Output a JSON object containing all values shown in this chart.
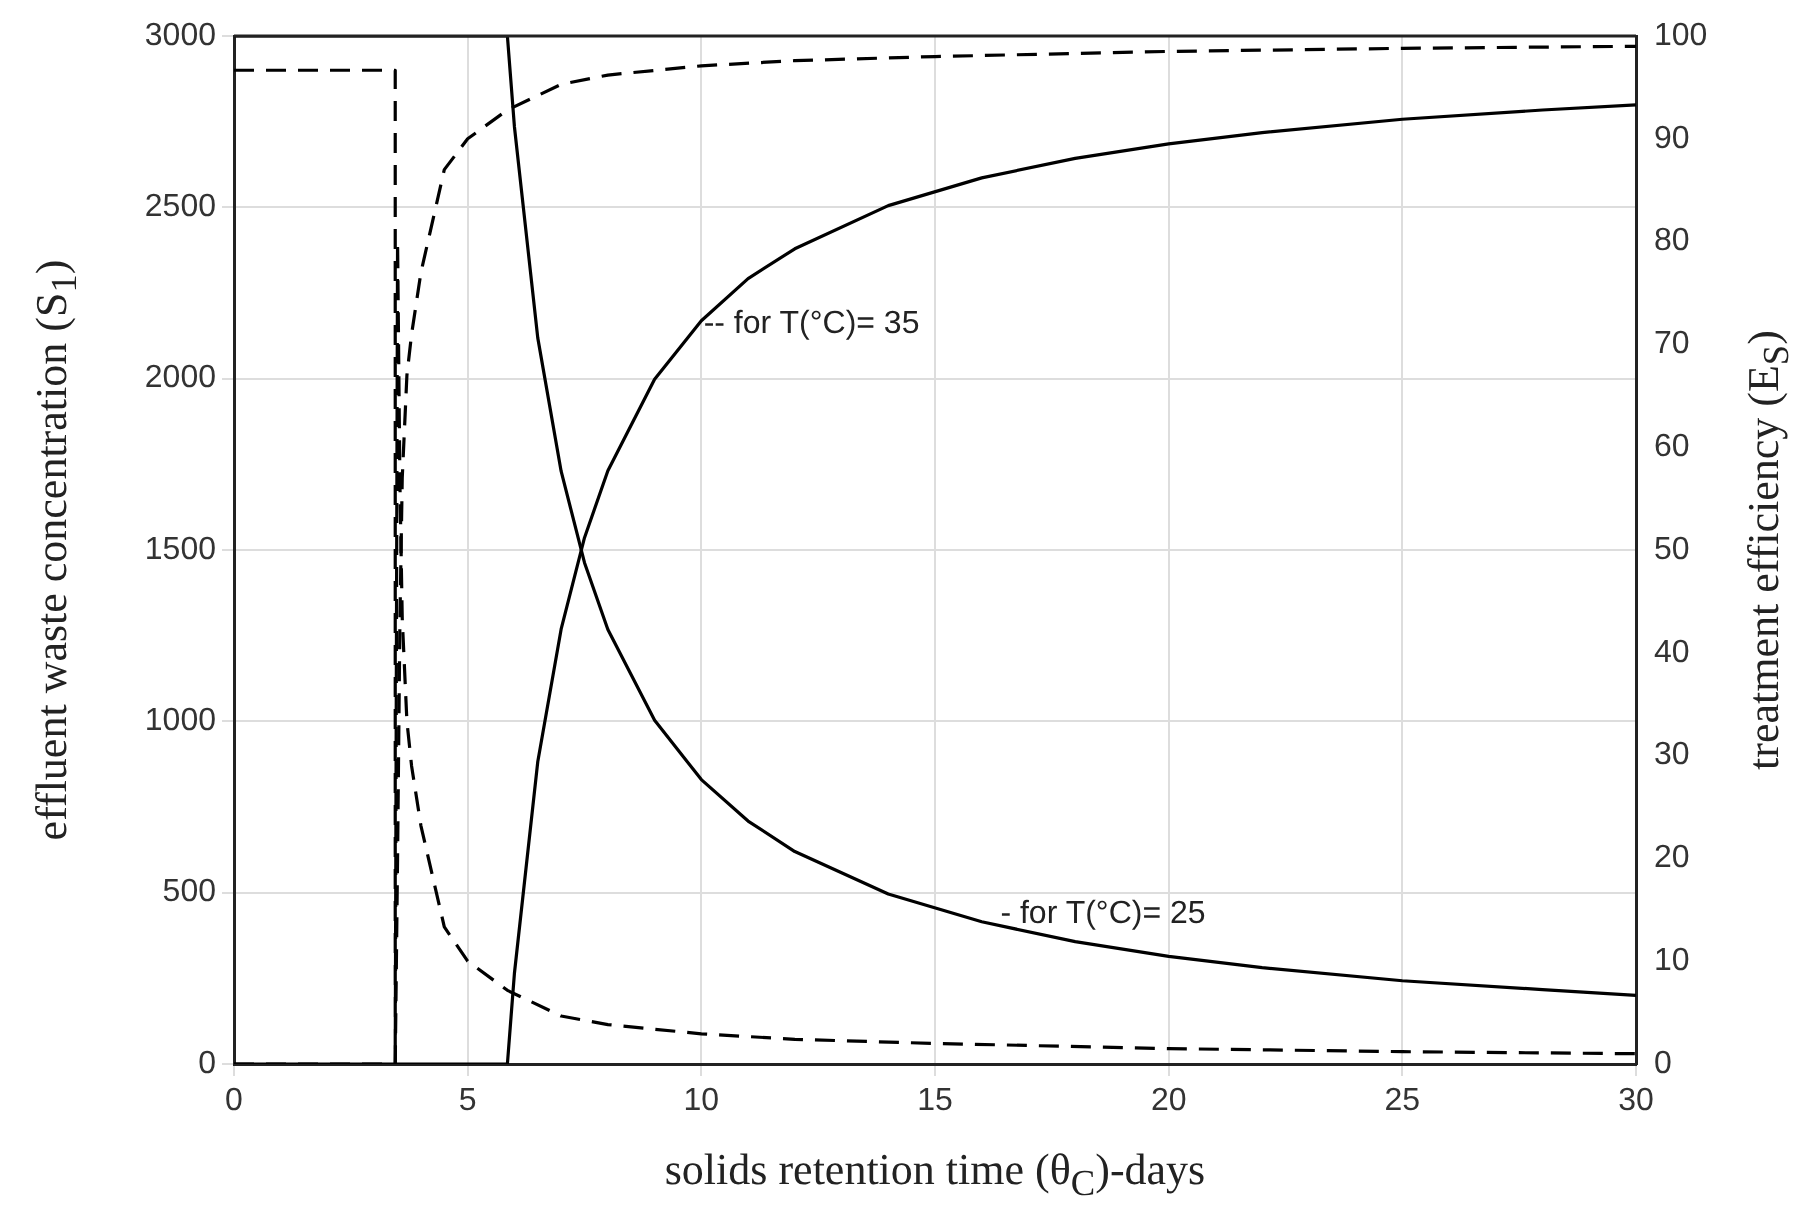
{
  "chart_data": {
    "type": "line",
    "xlabel": "solids retention time (θ$_{C}$)-days",
    "ylabel": "effluent waste concentration (S$_{1}$)",
    "y2label": "treatment efficiency (E$_{S}$)",
    "xlim": [
      0,
      30
    ],
    "xticks": [
      0,
      5,
      10,
      15,
      20,
      25,
      30
    ],
    "ylim": [
      0,
      3000
    ],
    "yticks": [
      0,
      500,
      1000,
      1500,
      2000,
      2500,
      3000
    ],
    "y2lim": [
      0,
      100
    ],
    "y2ticks": [
      0,
      10,
      20,
      30,
      40,
      50,
      60,
      70,
      80,
      90,
      100
    ],
    "grid": true,
    "series": [
      {
        "color": "#000000",
        "line_style": "solid",
        "x": [
          0,
          5.85,
          6,
          6.5,
          7,
          7.5,
          8,
          9,
          10,
          11,
          12,
          14,
          16,
          18,
          20,
          22,
          25,
          28,
          30
        ],
        "values": [
          3000,
          3000,
          2736,
          2119,
          1730,
          1463,
          1268,
          1003,
          830,
          709,
          620,
          496,
          415,
          357,
          314,
          281,
          243,
          217,
          200
        ]
      },
      {
        "color": "#000000",
        "line_style": "solid",
        "axis": "y2",
        "x": [
          0,
          5.85,
          6,
          6.5,
          7,
          7.5,
          8,
          9,
          10,
          11,
          12,
          14,
          16,
          18,
          20,
          22,
          25,
          28,
          30
        ],
        "values": [
          0,
          0,
          8.8,
          29.4,
          42.3,
          51.2,
          57.7,
          66.6,
          72.3,
          76.4,
          79.3,
          83.5,
          86.2,
          88.1,
          89.5,
          90.6,
          91.9,
          92.8,
          93.3
        ]
      },
      {
        "color": "#000000",
        "line_style": "dashed",
        "x": [
          0,
          3.45,
          3.45,
          3.5,
          3.55,
          3.6,
          3.7,
          3.8,
          4,
          4.5,
          5,
          5.85,
          7,
          8,
          10,
          12,
          15,
          20,
          25,
          30
        ],
        "values": [
          2900,
          2900,
          0,
          2400,
          1700,
          1300,
          1000,
          870,
          695,
          400,
          300,
          215,
          140,
          115,
          88,
          72,
          60,
          45,
          36,
          30
        ]
      },
      {
        "color": "#000000",
        "line_style": "dashed",
        "axis": "y2",
        "x": [
          0,
          3.45,
          3.5,
          3.55,
          3.6,
          3.7,
          3.8,
          4,
          4.5,
          5,
          5.85,
          7,
          8,
          10,
          12,
          15,
          20,
          25,
          30
        ],
        "values": [
          0,
          0,
          20,
          43,
          57,
          67,
          71,
          77,
          87,
          90,
          92.8,
          95.3,
          96.2,
          97.1,
          97.6,
          98,
          98.5,
          98.8,
          99
        ]
      }
    ],
    "annotations": [
      {
        "text": "-- for T(°C)= 35",
        "x": 10.05,
        "y": 2160
      },
      {
        "text": "- for T(°C)= 25",
        "x": 16.4,
        "y": 438
      }
    ]
  }
}
